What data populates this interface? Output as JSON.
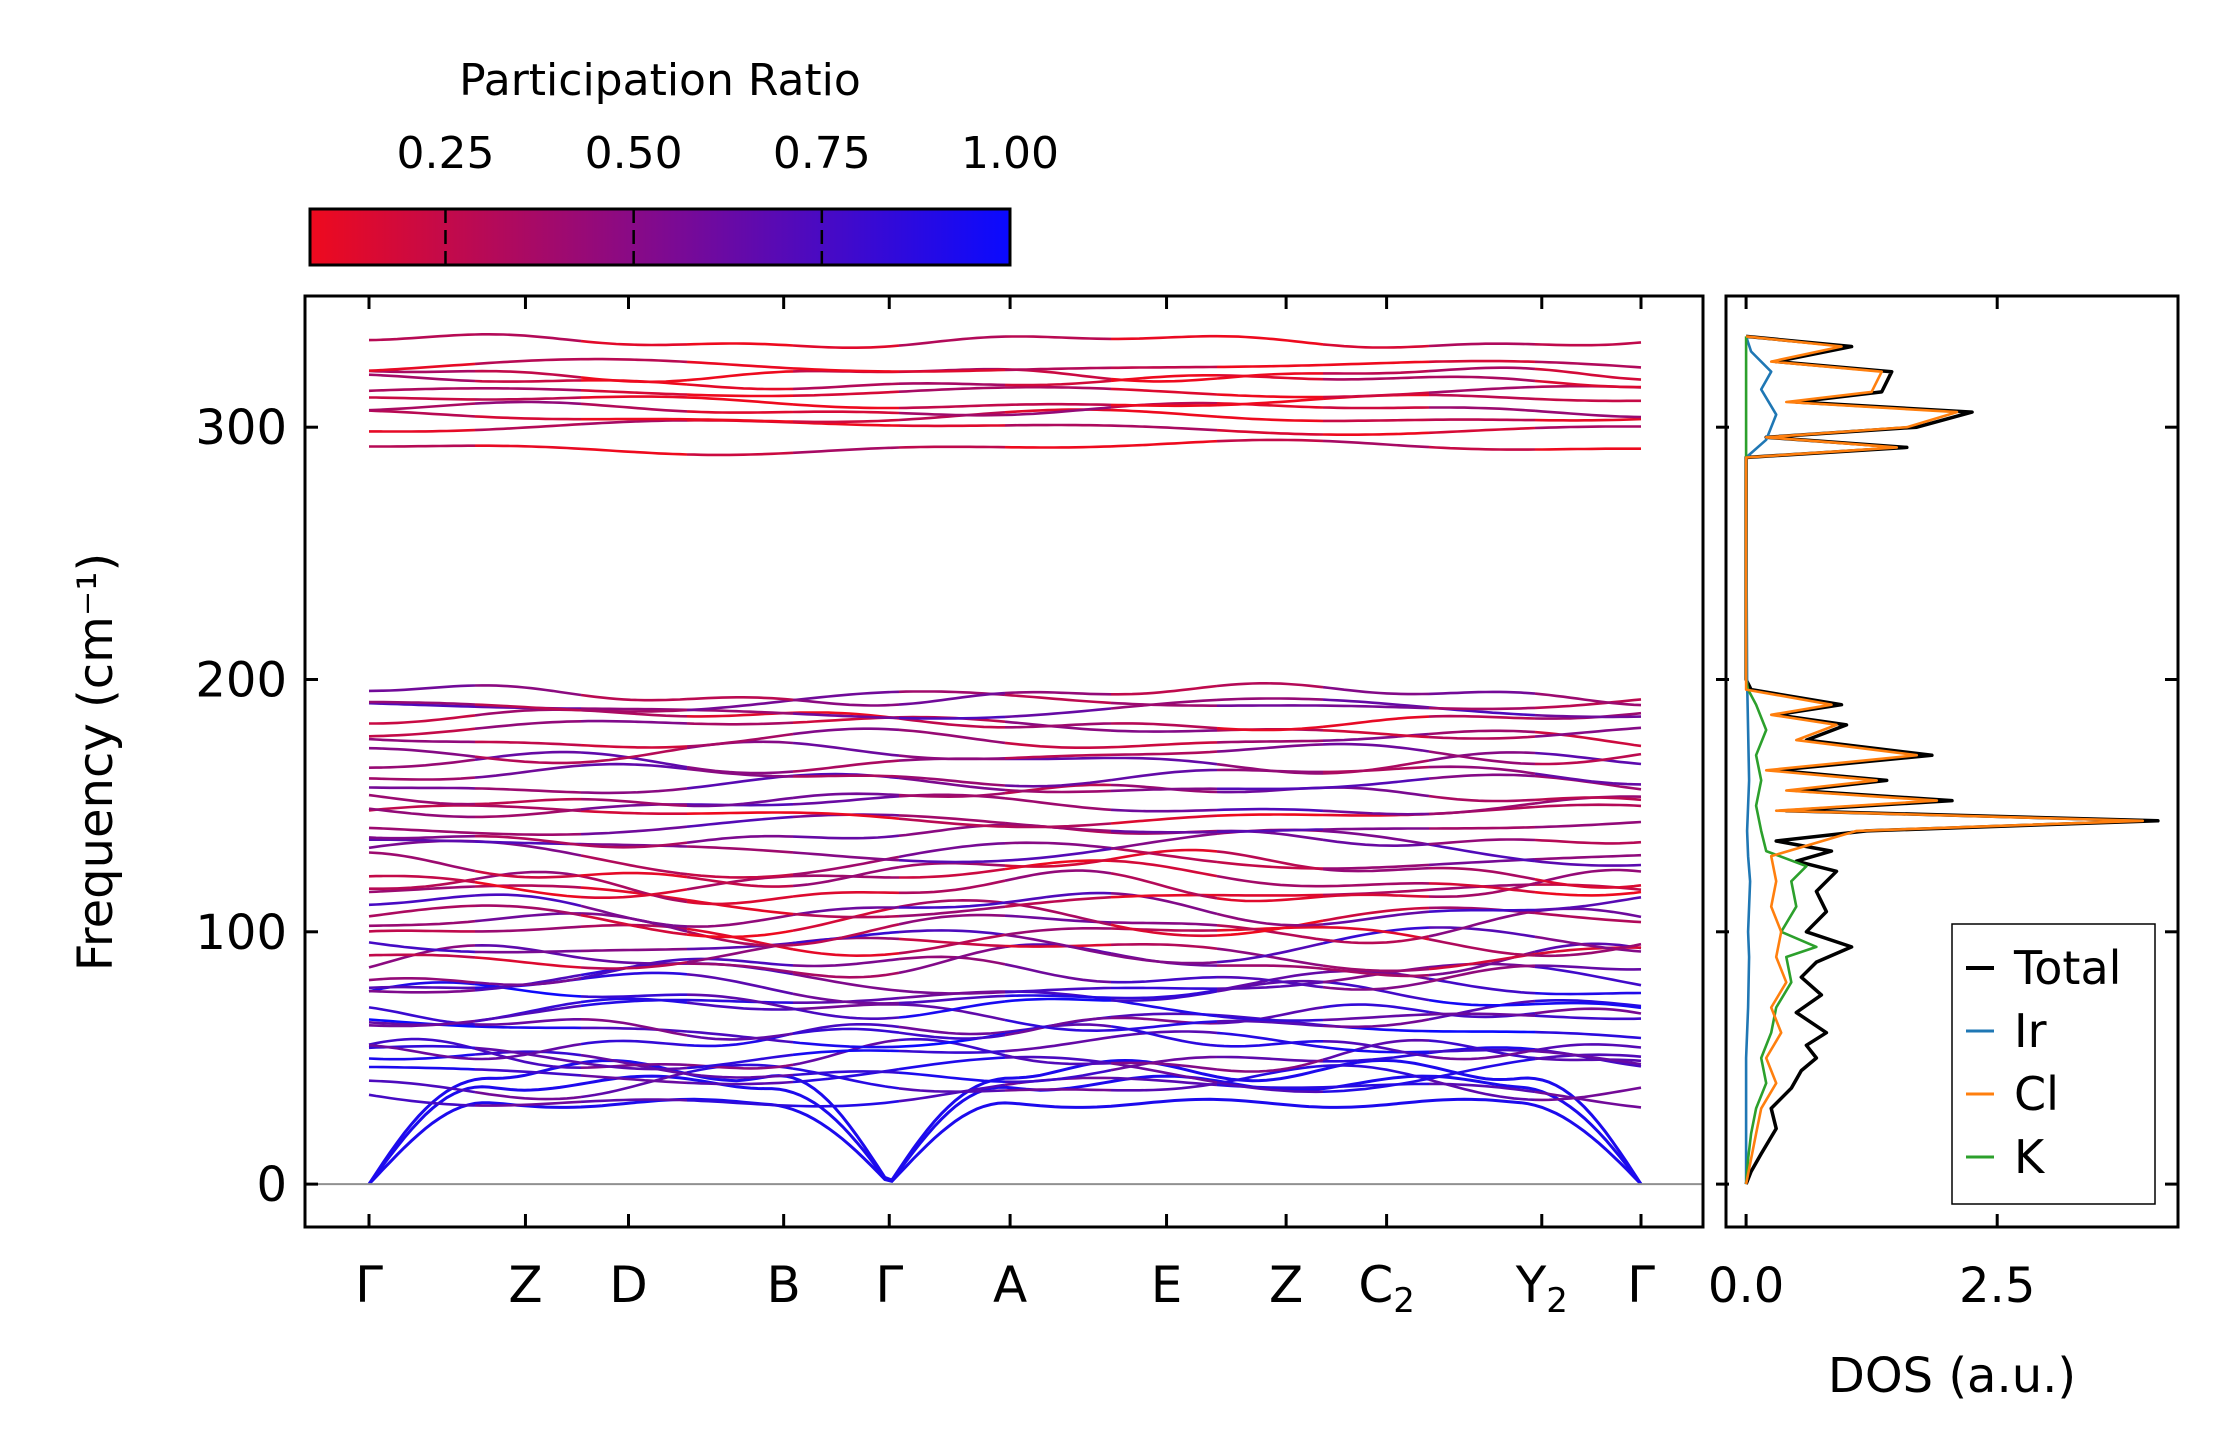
{
  "chart_data": [
    {
      "type": "line",
      "name": "phonon band structure",
      "ylabel": "Frequency (cm⁻¹)",
      "ylim": [
        -17,
        352
      ],
      "yticks": [
        0,
        100,
        200,
        300
      ],
      "xtick_labels": [
        "Γ",
        "Z",
        "D",
        "B",
        "Γ",
        "A",
        "E",
        "Z",
        "C2",
        "Y2",
        "Γ"
      ],
      "xtick_positions": [
        0,
        0.123,
        0.204,
        0.326,
        0.409,
        0.504,
        0.627,
        0.721,
        0.8,
        0.922,
        1.0
      ],
      "zero_line": 0,
      "bands": {
        "acoustic_end_values": [
          32,
          40,
          45
        ],
        "low_optic_values": [
          36,
          40,
          44,
          47,
          50,
          53,
          57,
          61,
          64,
          67,
          70,
          73,
          77,
          80
        ],
        "mid_values": [
          84,
          88,
          92,
          95,
          98,
          102,
          105,
          109,
          113,
          117,
          121,
          125,
          129,
          133
        ],
        "upper_values": [
          138,
          142,
          146,
          150,
          154,
          158,
          162,
          167,
          171,
          176,
          181,
          184,
          188,
          191,
          194
        ],
        "high_values": [
          292,
          300,
          304,
          307,
          310,
          314,
          318,
          321,
          324,
          334
        ]
      },
      "colorbar": {
        "title": "Participation Ratio",
        "tick_labels": [
          "0.25",
          "0.50",
          "0.75",
          "1.00"
        ],
        "tick_values": [
          0.25,
          0.5,
          0.75,
          1.0
        ],
        "range": [
          0.07,
          1.0
        ],
        "color_low": "#ee0a1e",
        "color_high": "#0a0aff"
      }
    },
    {
      "type": "line",
      "name": "phonon density of states",
      "xlabel": "DOS (a.u.)",
      "xlim": [
        -0.2,
        4.3
      ],
      "xticks": [
        0.0,
        2.5
      ],
      "xtick_labels": [
        "0.0",
        "2.5"
      ],
      "legend": {
        "position": "lower-right",
        "entries": [
          "Total",
          "Ir",
          "Cl",
          "K"
        ]
      },
      "series": [
        {
          "name": "Total",
          "color": "#000000",
          "points": [
            [
              0,
              0
            ],
            [
              0.05,
              5
            ],
            [
              0.15,
              12
            ],
            [
              0.3,
              22
            ],
            [
              0.25,
              30
            ],
            [
              0.45,
              38
            ],
            [
              0.55,
              45
            ],
            [
              0.7,
              50
            ],
            [
              0.6,
              55
            ],
            [
              0.8,
              60
            ],
            [
              0.5,
              68
            ],
            [
              0.75,
              75
            ],
            [
              0.55,
              82
            ],
            [
              0.7,
              88
            ],
            [
              1.05,
              94
            ],
            [
              0.6,
              100
            ],
            [
              0.8,
              108
            ],
            [
              0.7,
              116
            ],
            [
              0.9,
              124
            ],
            [
              0.5,
              128
            ],
            [
              0.85,
              132
            ],
            [
              0.3,
              136
            ],
            [
              1.2,
              140
            ],
            [
              4.1,
              144
            ],
            [
              0.4,
              148
            ],
            [
              2.05,
              152
            ],
            [
              0.5,
              156
            ],
            [
              1.4,
              160
            ],
            [
              0.3,
              164
            ],
            [
              1.85,
              170
            ],
            [
              0.6,
              176
            ],
            [
              1.0,
              182
            ],
            [
              0.3,
              186
            ],
            [
              0.95,
              190
            ],
            [
              0.05,
              196
            ],
            [
              0,
              200
            ],
            [
              0,
              288
            ],
            [
              1.6,
              292
            ],
            [
              0.2,
              296
            ],
            [
              1.7,
              300
            ],
            [
              2.25,
              306
            ],
            [
              0.5,
              310
            ],
            [
              1.35,
              314
            ],
            [
              1.45,
              322
            ],
            [
              0.3,
              326
            ],
            [
              1.05,
              332
            ],
            [
              0,
              336
            ]
          ]
        },
        {
          "name": "Ir",
          "color": "#1f77b4",
          "points": [
            [
              0,
              0
            ],
            [
              0,
              50
            ],
            [
              0.02,
              70
            ],
            [
              0.03,
              90
            ],
            [
              0.02,
              100
            ],
            [
              0.04,
              120
            ],
            [
              0.02,
              130
            ],
            [
              0.01,
              140
            ],
            [
              0.03,
              160
            ],
            [
              0.02,
              180
            ],
            [
              0.01,
              200
            ],
            [
              0,
              288
            ],
            [
              0.2,
              295
            ],
            [
              0.3,
              305
            ],
            [
              0.15,
              315
            ],
            [
              0.25,
              322
            ],
            [
              0.05,
              330
            ],
            [
              0,
              336
            ]
          ]
        },
        {
          "name": "Cl",
          "color": "#ff7f0e",
          "points": [
            [
              0,
              0
            ],
            [
              0.05,
              10
            ],
            [
              0.1,
              20
            ],
            [
              0.15,
              30
            ],
            [
              0.3,
              40
            ],
            [
              0.2,
              50
            ],
            [
              0.35,
              60
            ],
            [
              0.25,
              70
            ],
            [
              0.4,
              80
            ],
            [
              0.3,
              90
            ],
            [
              0.35,
              100
            ],
            [
              0.25,
              110
            ],
            [
              0.3,
              120
            ],
            [
              0.25,
              130
            ],
            [
              1.1,
              140
            ],
            [
              3.95,
              144
            ],
            [
              0.3,
              148
            ],
            [
              1.9,
              152
            ],
            [
              0.4,
              156
            ],
            [
              1.3,
              160
            ],
            [
              0.2,
              164
            ],
            [
              1.7,
              170
            ],
            [
              0.5,
              176
            ],
            [
              0.9,
              182
            ],
            [
              0.25,
              186
            ],
            [
              0.85,
              190
            ],
            [
              0,
              196
            ],
            [
              0,
              288
            ],
            [
              1.5,
              292
            ],
            [
              0.2,
              296
            ],
            [
              1.6,
              300
            ],
            [
              2.1,
              306
            ],
            [
              0.4,
              310
            ],
            [
              1.25,
              314
            ],
            [
              1.35,
              322
            ],
            [
              0.25,
              326
            ],
            [
              0.95,
              332
            ],
            [
              0,
              336
            ]
          ]
        },
        {
          "name": "K",
          "color": "#2ca02c",
          "points": [
            [
              0,
              0
            ],
            [
              0.02,
              10
            ],
            [
              0.05,
              20
            ],
            [
              0.1,
              30
            ],
            [
              0.2,
              40
            ],
            [
              0.15,
              50
            ],
            [
              0.25,
              60
            ],
            [
              0.3,
              70
            ],
            [
              0.45,
              80
            ],
            [
              0.4,
              90
            ],
            [
              0.7,
              94
            ],
            [
              0.35,
              100
            ],
            [
              0.5,
              110
            ],
            [
              0.45,
              120
            ],
            [
              0.6,
              126
            ],
            [
              0.2,
              132
            ],
            [
              0.15,
              140
            ],
            [
              0.1,
              150
            ],
            [
              0.15,
              160
            ],
            [
              0.1,
              170
            ],
            [
              0.2,
              180
            ],
            [
              0.1,
              190
            ],
            [
              0.02,
              196
            ],
            [
              0,
              200
            ],
            [
              0,
              336
            ]
          ]
        }
      ]
    }
  ]
}
